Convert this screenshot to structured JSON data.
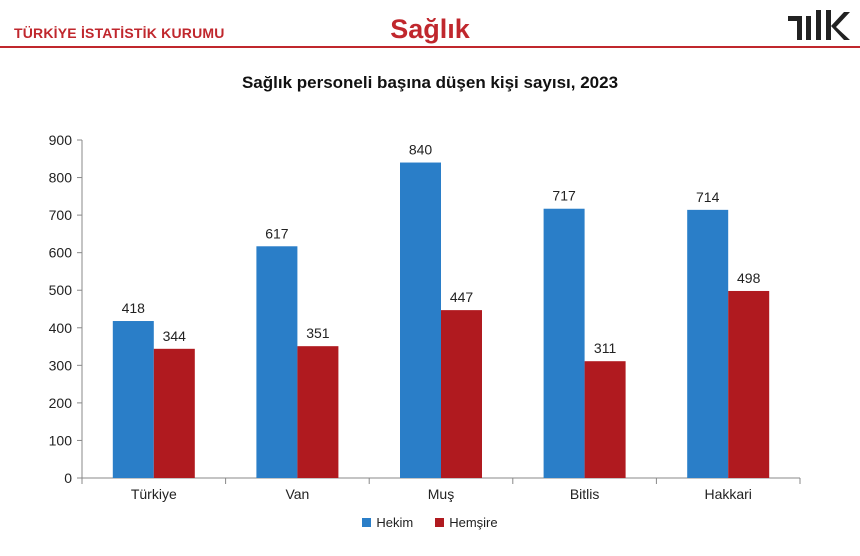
{
  "header": {
    "organization": "TÜRKİYE İSTATİSTİK KURUMU",
    "section_title": "Sağlık",
    "logo_text": "TÜİK"
  },
  "chart_data": {
    "type": "bar",
    "title": "Sağlık personeli başına düşen kişi sayısı, 2023",
    "categories": [
      "Türkiye",
      "Van",
      "Muş",
      "Bitlis",
      "Hakkari"
    ],
    "series": [
      {
        "name": "Hekim",
        "color": "#2a7ec8",
        "values": [
          418,
          617,
          840,
          717,
          714
        ]
      },
      {
        "name": "Hemşire",
        "color": "#b01a1f",
        "values": [
          344,
          351,
          447,
          311,
          498
        ]
      }
    ],
    "xlabel": "",
    "ylabel": "",
    "ylim": [
      0,
      900
    ],
    "yticks": [
      0,
      100,
      200,
      300,
      400,
      500,
      600,
      700,
      800,
      900
    ],
    "data_labels": true,
    "grid": false,
    "legend_position": "bottom"
  }
}
